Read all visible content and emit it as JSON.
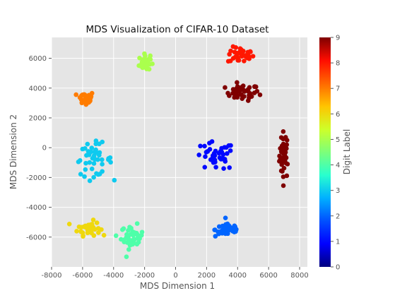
{
  "chart_data": {
    "type": "scatter",
    "title": "MDS Visualization of CIFAR-10 Dataset",
    "xlabel": "MDS Dimension 1",
    "ylabel": "MDS Dimension 2",
    "xlim": [
      -8000,
      8500
    ],
    "ylim": [
      -8000,
      7400
    ],
    "x_ticks": [
      -8000,
      -6000,
      -4000,
      -2000,
      0,
      2000,
      4000,
      6000,
      8000
    ],
    "y_ticks": [
      -6000,
      -4000,
      -2000,
      0,
      2000,
      4000,
      6000
    ],
    "grid": true,
    "colorbar": {
      "label": "Digit Label",
      "range": [
        0,
        9
      ],
      "ticks": [
        0,
        1,
        2,
        3,
        4,
        5,
        6,
        7,
        8,
        9
      ],
      "colormap": "jet",
      "colors": [
        "#00007f",
        "#0000ff",
        "#0050ff",
        "#00b0ff",
        "#29ffce",
        "#7dff7a",
        "#ceff29",
        "#ffc400",
        "#ff6800",
        "#ff0d00",
        "#7f0000"
      ]
    },
    "clusters": [
      {
        "label": 9,
        "center": [
          7000,
          -500
        ],
        "count": 40,
        "spread": [
          250,
          1300
        ],
        "approx": true
      },
      {
        "label": 9,
        "center": [
          4300,
          3700
        ],
        "count": 40,
        "spread": [
          900,
          450
        ],
        "approx": true
      },
      {
        "label": 8,
        "center": [
          4200,
          6200
        ],
        "count": 40,
        "spread": [
          700,
          450
        ],
        "approx": true
      },
      {
        "label": 7,
        "center": [
          -5800,
          3300
        ],
        "count": 35,
        "spread": [
          450,
          400
        ],
        "approx": true
      },
      {
        "label": 6,
        "center": [
          -5600,
          -5400
        ],
        "count": 45,
        "spread": [
          600,
          400
        ],
        "approx": true
      },
      {
        "label": 5,
        "center": [
          -2000,
          5700
        ],
        "count": 40,
        "spread": [
          300,
          450
        ],
        "approx": true
      },
      {
        "label": 4,
        "center": [
          -2800,
          -6000
        ],
        "count": 40,
        "spread": [
          600,
          650
        ],
        "approx": true
      },
      {
        "label": 3,
        "center": [
          -5300,
          -800
        ],
        "count": 45,
        "spread": [
          1000,
          900
        ],
        "approx": true
      },
      {
        "label": 2,
        "center": [
          3400,
          -5500
        ],
        "count": 50,
        "spread": [
          700,
          400
        ],
        "approx": true
      },
      {
        "label": 1,
        "center": [
          2500,
          -600
        ],
        "count": 40,
        "spread": [
          1100,
          800
        ],
        "approx": true
      }
    ]
  }
}
